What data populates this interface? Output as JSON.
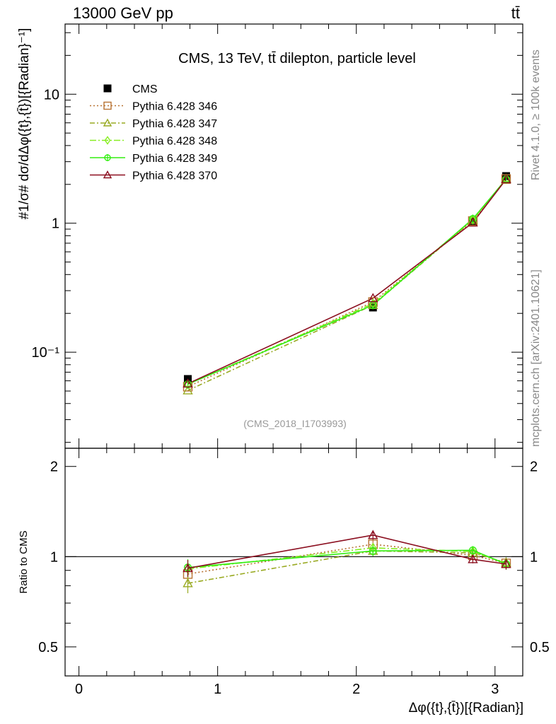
{
  "header": {
    "left_label": "13000 GeV pp",
    "right_label": "tt̄"
  },
  "side_labels": {
    "rivet": "Rivet 4.1.0, ≥ 100k events",
    "mcplots": "mcplots.cern.ch [arXiv:2401.10621]"
  },
  "chart_data": [
    {
      "type": "line",
      "panel": "main",
      "title": "CMS, 13 TeV, tt̄ dilepton, particle level",
      "watermark": "(CMS_2018_I1703993)",
      "yscale": "log",
      "ylim": [
        0.018,
        35
      ],
      "xlim": [
        -0.1,
        3.2
      ],
      "ylabel": "#1/σ# dσ/dΔφ({t},{t̄})[{Radian}⁻¹]",
      "xticks": [
        0,
        1,
        2,
        3
      ],
      "yticks": [
        {
          "value": 0.1,
          "label": "10⁻¹"
        },
        {
          "value": 1,
          "label": "1"
        },
        {
          "value": 10,
          "label": "10"
        }
      ],
      "legend_position": "top-left",
      "x": [
        0.785,
        2.12,
        2.84,
        3.08
      ],
      "data": {
        "name": "CMS",
        "values": [
          0.062,
          0.222,
          1.03,
          2.32
        ],
        "errors": [
          0.004,
          0.01,
          0.04,
          0.08
        ]
      },
      "series": [
        {
          "name": "Pythia 6.428 346",
          "values": [
            0.054,
            0.245,
            1.04,
            2.2
          ],
          "color": "#b87333",
          "dash": "2,3",
          "marker": "square"
        },
        {
          "name": "Pythia 6.428 347",
          "values": [
            0.0505,
            0.232,
            1.06,
            2.21
          ],
          "color": "#99aa22",
          "dash": "7,3,2,3",
          "marker": "triangle"
        },
        {
          "name": "Pythia 6.428 348",
          "values": [
            0.0565,
            0.238,
            1.07,
            2.2
          ],
          "color": "#88ee22",
          "dash": "9,3,2,3",
          "marker": "diamond"
        },
        {
          "name": "Pythia 6.428 349",
          "values": [
            0.0565,
            0.232,
            1.08,
            2.19
          ],
          "color": "#33ee11",
          "dash": "",
          "marker": "circle"
        },
        {
          "name": "Pythia 6.428 370",
          "values": [
            0.057,
            0.262,
            1.01,
            2.19
          ],
          "color": "#8b0e1f",
          "dash": "",
          "marker": "triangle"
        }
      ]
    },
    {
      "type": "line",
      "panel": "ratio",
      "ylabel": "Ratio to CMS",
      "xlabel": "Δφ({t},{t̄})[{Radian}]",
      "ylim": [
        0.4,
        2.3
      ],
      "yscale": "log",
      "xlim": [
        -0.1,
        3.2
      ],
      "xticks": [
        0,
        1,
        2,
        3
      ],
      "yticks": [
        {
          "value": 0.5,
          "label": "0.5"
        },
        {
          "value": 1,
          "label": "1"
        },
        {
          "value": 2,
          "label": "2"
        }
      ],
      "reference_line": 1,
      "x": [
        0.785,
        2.12,
        2.84,
        3.08
      ],
      "series": [
        {
          "name": "Pythia 6.428 346",
          "values": [
            0.875,
            1.1,
            1.01,
            0.95
          ],
          "errors": [
            0.06,
            0.04,
            0.03,
            0.04
          ]
        },
        {
          "name": "Pythia 6.428 347",
          "values": [
            0.815,
            1.045,
            1.03,
            0.955
          ],
          "errors": [
            0.06,
            0.04,
            0.03,
            0.04
          ]
        },
        {
          "name": "Pythia 6.428 348",
          "values": [
            0.91,
            1.07,
            1.04,
            0.95
          ],
          "errors": [
            0.06,
            0.04,
            0.03,
            0.04
          ]
        },
        {
          "name": "Pythia 6.428 349",
          "values": [
            0.92,
            1.045,
            1.05,
            0.945
          ],
          "errors": [
            0.06,
            0.04,
            0.03,
            0.04
          ]
        },
        {
          "name": "Pythia 6.428 370",
          "values": [
            0.915,
            1.18,
            0.98,
            0.945
          ],
          "errors": [
            0.06,
            0.04,
            0.03,
            0.04
          ]
        }
      ]
    }
  ]
}
